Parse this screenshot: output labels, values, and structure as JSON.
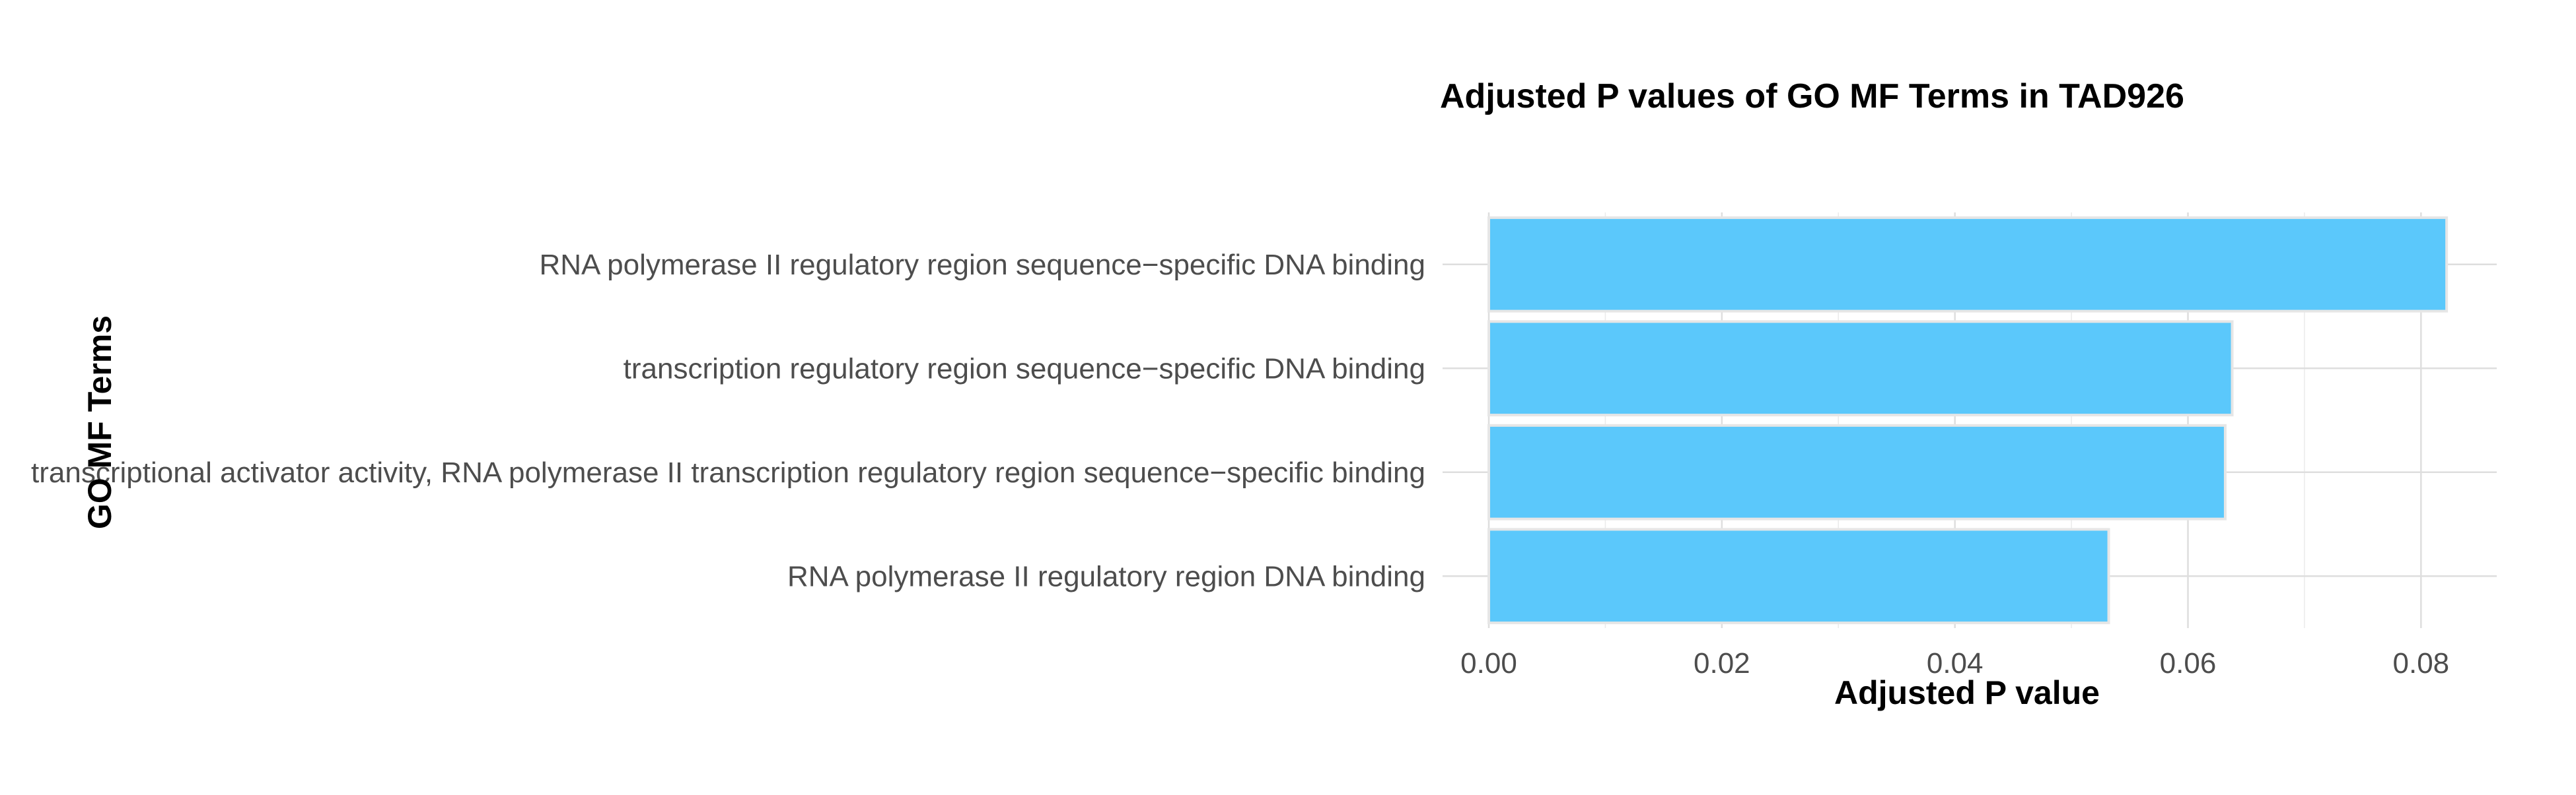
{
  "chart_data": {
    "type": "bar",
    "orientation": "horizontal",
    "title": "Adjusted P values of GO MF Terms in TAD926",
    "xlabel": "Adjusted P value",
    "ylabel": "GO MF Terms",
    "categories": [
      "RNA polymerase II regulatory region sequence−specific DNA binding",
      "transcription regulatory region sequence−specific DNA binding",
      "transcriptional activator activity, RNA polymerase II transcription regulatory region sequence−specific binding",
      "RNA polymerase II regulatory region DNA binding"
    ],
    "values": [
      0.0822,
      0.0638,
      0.0632,
      0.0532
    ],
    "xlim": [
      0,
      0.0865
    ],
    "x_ticks": [
      0.0,
      0.02,
      0.04,
      0.06,
      0.08
    ],
    "x_tick_labels": [
      "0.00",
      "0.02",
      "0.04",
      "0.06",
      "0.08"
    ],
    "grid": true,
    "legend": "none",
    "bar_color": "#5bc8fb"
  }
}
